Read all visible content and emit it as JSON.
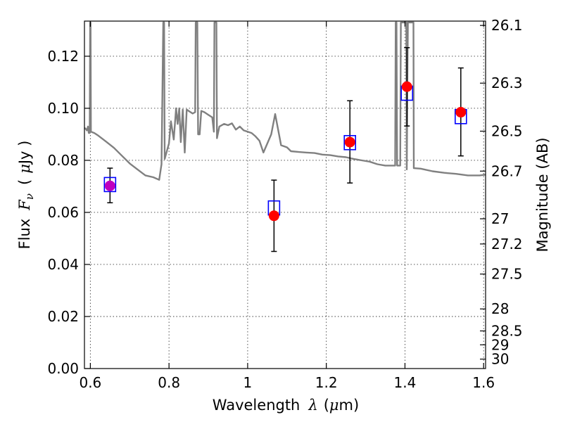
{
  "chart_data": {
    "type": "scatter",
    "xlabel": {
      "text": "Wavelength",
      "symbol": "λ",
      "unit_open": "(",
      "unit_mu": "μ",
      "unit_rest": "m)"
    },
    "ylabel": {
      "text": "Flux",
      "symbol_main": "F",
      "symbol_sub": "ν",
      "unit_open": "(",
      "unit_mu": "μ",
      "unit_rest": "Jy )"
    },
    "y2label": "Magnitude (AB)",
    "xlim": [
      0.585,
      1.605
    ],
    "ylim": [
      0.0,
      0.1335
    ],
    "x_ticks": [
      0.6,
      0.8,
      1.0,
      1.2,
      1.4,
      1.6
    ],
    "x_tick_labels": [
      "0.6",
      "0.8",
      "1",
      "1.2",
      "1.4",
      "1.6"
    ],
    "y_ticks": [
      0.0,
      0.02,
      0.04,
      0.06,
      0.08,
      0.1,
      0.12
    ],
    "y_tick_labels": [
      "0.00",
      "0.02",
      "0.04",
      "0.06",
      "0.08",
      "0.10",
      "0.12"
    ],
    "mag_ticks": [
      {
        "mag": 26.1,
        "label": "26.1"
      },
      {
        "mag": 26.3,
        "label": "26.3"
      },
      {
        "mag": 26.5,
        "label": "26.5"
      },
      {
        "mag": 26.7,
        "label": "26.7"
      },
      {
        "mag": 27.0,
        "label": "27"
      },
      {
        "mag": 27.2,
        "label": "27.2"
      },
      {
        "mag": 27.5,
        "label": "27.5"
      },
      {
        "mag": 28.0,
        "label": "28"
      },
      {
        "mag": 28.5,
        "label": "28.5"
      },
      {
        "mag": 29.0,
        "label": "29"
      },
      {
        "mag": 30.0,
        "label": "30"
      }
    ],
    "grid": true,
    "colors": {
      "model": "#808080",
      "observed": "#ff0000",
      "observed_upper_limit": "#bf00bf",
      "synthetic": "#0000ff",
      "errorbar": "#000000"
    },
    "observed": [
      {
        "x": 0.65,
        "y": 0.0702,
        "err_low": 0.0065,
        "err_high": 0.0068,
        "color": "#bf00bf"
      },
      {
        "x": 1.067,
        "y": 0.0587,
        "err_low": 0.0137,
        "err_high": 0.0137,
        "color": "#ff0000"
      },
      {
        "x": 1.26,
        "y": 0.087,
        "err_low": 0.0157,
        "err_high": 0.0159,
        "color": "#ff0000"
      },
      {
        "x": 1.405,
        "y": 0.1083,
        "err_low": 0.0151,
        "err_high": 0.015,
        "color": "#ff0000"
      },
      {
        "x": 1.542,
        "y": 0.0985,
        "err_low": 0.0168,
        "err_high": 0.017,
        "color": "#ff0000"
      }
    ],
    "synthetic": [
      {
        "x": 0.65,
        "y": 0.0707
      },
      {
        "x": 1.067,
        "y": 0.0617
      },
      {
        "x": 1.26,
        "y": 0.0868
      },
      {
        "x": 1.405,
        "y": 0.1058
      },
      {
        "x": 1.542,
        "y": 0.0968
      }
    ],
    "model_sed": [
      [
        0.585,
        0.0925
      ],
      [
        0.589,
        0.092
      ],
      [
        0.591,
        0.0915
      ],
      [
        0.594,
        0.093
      ],
      [
        0.596,
        0.0905
      ],
      [
        0.5985,
        0.0905
      ],
      [
        0.5995,
        0.133
      ],
      [
        0.6005,
        0.133
      ],
      [
        0.6015,
        0.091
      ],
      [
        0.61,
        0.0905
      ],
      [
        0.62,
        0.0895
      ],
      [
        0.64,
        0.0872
      ],
      [
        0.66,
        0.0848
      ],
      [
        0.68,
        0.0818
      ],
      [
        0.7,
        0.0788
      ],
      [
        0.72,
        0.0765
      ],
      [
        0.74,
        0.0742
      ],
      [
        0.76,
        0.0735
      ],
      [
        0.775,
        0.0725
      ],
      [
        0.781,
        0.0785
      ],
      [
        0.7855,
        0.133
      ],
      [
        0.7875,
        0.133
      ],
      [
        0.789,
        0.0805
      ],
      [
        0.8,
        0.0865
      ],
      [
        0.805,
        0.095
      ],
      [
        0.812,
        0.088
      ],
      [
        0.818,
        0.1
      ],
      [
        0.822,
        0.094
      ],
      [
        0.826,
        0.1
      ],
      [
        0.83,
        0.087
      ],
      [
        0.835,
        0.0995
      ],
      [
        0.84,
        0.083
      ],
      [
        0.845,
        0.0995
      ],
      [
        0.85,
        0.099
      ],
      [
        0.86,
        0.098
      ],
      [
        0.8665,
        0.0985
      ],
      [
        0.868,
        0.133
      ],
      [
        0.872,
        0.133
      ],
      [
        0.874,
        0.09
      ],
      [
        0.878,
        0.09
      ],
      [
        0.882,
        0.099
      ],
      [
        0.89,
        0.0985
      ],
      [
        0.9,
        0.0975
      ],
      [
        0.91,
        0.0965
      ],
      [
        0.914,
        0.091
      ],
      [
        0.9155,
        0.133
      ],
      [
        0.9205,
        0.133
      ],
      [
        0.922,
        0.0885
      ],
      [
        0.928,
        0.093
      ],
      [
        0.94,
        0.094
      ],
      [
        0.95,
        0.0935
      ],
      [
        0.96,
        0.0942
      ],
      [
        0.97,
        0.0918
      ],
      [
        0.98,
        0.093
      ],
      [
        0.99,
        0.0915
      ],
      [
        1.0,
        0.091
      ],
      [
        1.01,
        0.0905
      ],
      [
        1.02,
        0.0892
      ],
      [
        1.03,
        0.0875
      ],
      [
        1.04,
        0.083
      ],
      [
        1.05,
        0.0865
      ],
      [
        1.06,
        0.09
      ],
      [
        1.07,
        0.0978
      ],
      [
        1.085,
        0.0858
      ],
      [
        1.1,
        0.085
      ],
      [
        1.11,
        0.0835
      ],
      [
        1.13,
        0.0832
      ],
      [
        1.15,
        0.083
      ],
      [
        1.17,
        0.0828
      ],
      [
        1.19,
        0.0822
      ],
      [
        1.21,
        0.082
      ],
      [
        1.23,
        0.0815
      ],
      [
        1.25,
        0.0812
      ],
      [
        1.27,
        0.0805
      ],
      [
        1.29,
        0.08
      ],
      [
        1.31,
        0.0795
      ],
      [
        1.33,
        0.0785
      ],
      [
        1.35,
        0.078
      ],
      [
        1.37,
        0.078
      ],
      [
        1.375,
        0.078
      ],
      [
        1.3765,
        0.133
      ],
      [
        1.3785,
        0.133
      ],
      [
        1.38,
        0.078
      ],
      [
        1.388,
        0.078
      ],
      [
        1.3895,
        0.133
      ],
      [
        1.4035,
        0.133
      ],
      [
        1.4045,
        0.0765
      ],
      [
        1.4075,
        0.133
      ],
      [
        1.4215,
        0.133
      ],
      [
        1.4225,
        0.077
      ],
      [
        1.44,
        0.0768
      ],
      [
        1.47,
        0.0758
      ],
      [
        1.5,
        0.0752
      ],
      [
        1.53,
        0.0748
      ],
      [
        1.56,
        0.0742
      ],
      [
        1.59,
        0.0742
      ],
      [
        1.605,
        0.0745
      ]
    ]
  }
}
